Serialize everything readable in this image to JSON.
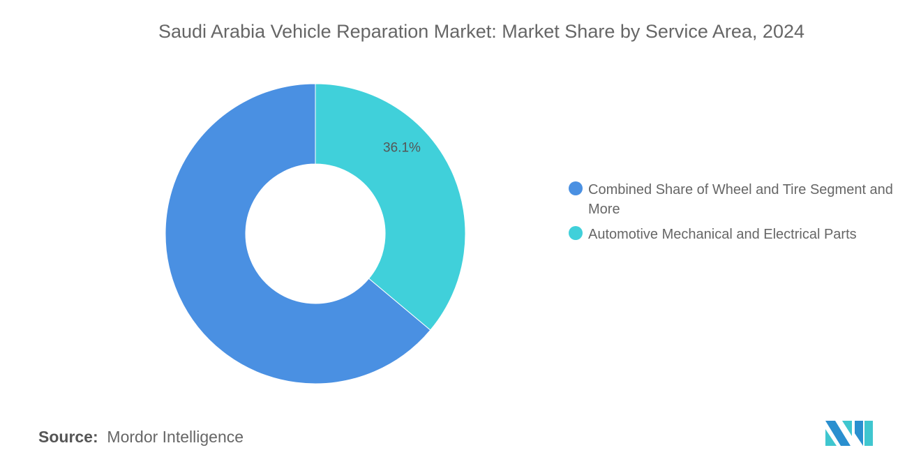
{
  "chart_data": {
    "type": "pie",
    "donut": true,
    "title": "Saudi Arabia Vehicle Reparation Market: Market Share by Service Area, 2024",
    "series": [
      {
        "name": "Combined Share of Wheel and Tire Segment and More",
        "value": 63.9,
        "color": "#4a90e2",
        "label": ""
      },
      {
        "name": "Automotive Mechanical and Electrical Parts",
        "value": 36.1,
        "color": "#40d0da",
        "label": "36.1%"
      }
    ],
    "legend_placement": "right"
  },
  "source": {
    "label": "Source:",
    "text": "Mordor Intelligence"
  },
  "logo": {
    "text": "Mordor Intelligence"
  }
}
